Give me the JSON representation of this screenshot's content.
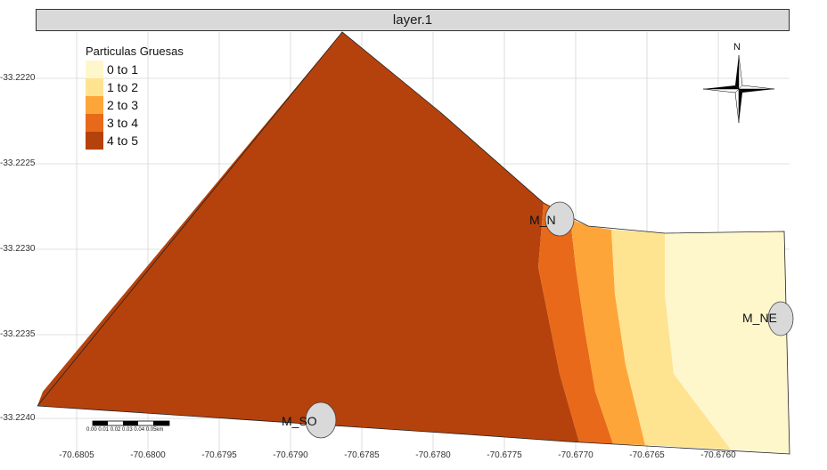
{
  "panel": {
    "title": "layer.1"
  },
  "legend": {
    "title": "Particulas Gruesas",
    "items": [
      {
        "label": "0 to 1",
        "color": "#fff7cc"
      },
      {
        "label": "1 to 2",
        "color": "#fee391"
      },
      {
        "label": "2 to 3",
        "color": "#fea53a"
      },
      {
        "label": "3 to 4",
        "color": "#e8691a"
      },
      {
        "label": "4 to 5",
        "color": "#b5420c"
      }
    ]
  },
  "axes": {
    "y_ticks": [
      "-33.2220",
      "-33.2225",
      "-33.2230",
      "-33.2235",
      "-33.2240"
    ],
    "x_ticks": [
      "-70.6805",
      "-70.6800",
      "-70.6795",
      "-70.6790",
      "-70.6785",
      "-70.6780",
      "-70.6775",
      "-70.6770",
      "-70.6765",
      "-70.6760"
    ]
  },
  "stations": [
    {
      "label": "M_N"
    },
    {
      "label": "M_NE"
    },
    {
      "label": "M_SO"
    }
  ],
  "scale_bar": {
    "label": "0.00 0.01 0.02 0.03 0.04 0.05km"
  },
  "north_arrow": {
    "label": "N"
  },
  "colors": {
    "background": "#ffffff",
    "grid": "#d6d6d6",
    "marker_fill": "#d9d9d9"
  }
}
